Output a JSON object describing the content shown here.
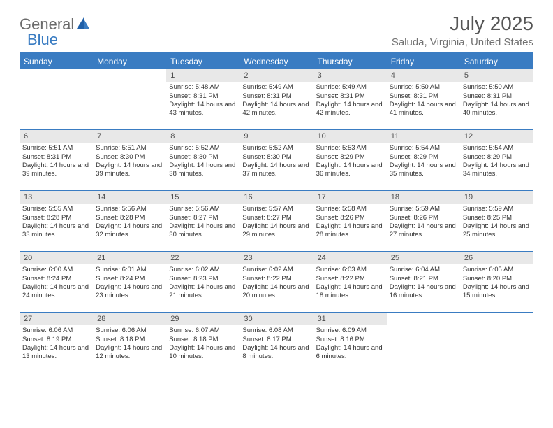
{
  "logo": {
    "text1": "General",
    "text2": "Blue"
  },
  "title": "July 2025",
  "location": "Saluda, Virginia, United States",
  "colors": {
    "accent": "#3a7cc2",
    "logo_gray": "#6b6b6b",
    "title_gray": "#555555",
    "subtitle_gray": "#717171",
    "daynum_bg": "#e8e8e8",
    "text": "#333333"
  },
  "day_headers": [
    "Sunday",
    "Monday",
    "Tuesday",
    "Wednesday",
    "Thursday",
    "Friday",
    "Saturday"
  ],
  "weeks": [
    [
      {
        "num": "",
        "lines": []
      },
      {
        "num": "",
        "lines": []
      },
      {
        "num": "1",
        "lines": [
          "Sunrise: 5:48 AM",
          "Sunset: 8:31 PM",
          "Daylight: 14 hours and 43 minutes."
        ]
      },
      {
        "num": "2",
        "lines": [
          "Sunrise: 5:49 AM",
          "Sunset: 8:31 PM",
          "Daylight: 14 hours and 42 minutes."
        ]
      },
      {
        "num": "3",
        "lines": [
          "Sunrise: 5:49 AM",
          "Sunset: 8:31 PM",
          "Daylight: 14 hours and 42 minutes."
        ]
      },
      {
        "num": "4",
        "lines": [
          "Sunrise: 5:50 AM",
          "Sunset: 8:31 PM",
          "Daylight: 14 hours and 41 minutes."
        ]
      },
      {
        "num": "5",
        "lines": [
          "Sunrise: 5:50 AM",
          "Sunset: 8:31 PM",
          "Daylight: 14 hours and 40 minutes."
        ]
      }
    ],
    [
      {
        "num": "6",
        "lines": [
          "Sunrise: 5:51 AM",
          "Sunset: 8:31 PM",
          "Daylight: 14 hours and 39 minutes."
        ]
      },
      {
        "num": "7",
        "lines": [
          "Sunrise: 5:51 AM",
          "Sunset: 8:30 PM",
          "Daylight: 14 hours and 39 minutes."
        ]
      },
      {
        "num": "8",
        "lines": [
          "Sunrise: 5:52 AM",
          "Sunset: 8:30 PM",
          "Daylight: 14 hours and 38 minutes."
        ]
      },
      {
        "num": "9",
        "lines": [
          "Sunrise: 5:52 AM",
          "Sunset: 8:30 PM",
          "Daylight: 14 hours and 37 minutes."
        ]
      },
      {
        "num": "10",
        "lines": [
          "Sunrise: 5:53 AM",
          "Sunset: 8:29 PM",
          "Daylight: 14 hours and 36 minutes."
        ]
      },
      {
        "num": "11",
        "lines": [
          "Sunrise: 5:54 AM",
          "Sunset: 8:29 PM",
          "Daylight: 14 hours and 35 minutes."
        ]
      },
      {
        "num": "12",
        "lines": [
          "Sunrise: 5:54 AM",
          "Sunset: 8:29 PM",
          "Daylight: 14 hours and 34 minutes."
        ]
      }
    ],
    [
      {
        "num": "13",
        "lines": [
          "Sunrise: 5:55 AM",
          "Sunset: 8:28 PM",
          "Daylight: 14 hours and 33 minutes."
        ]
      },
      {
        "num": "14",
        "lines": [
          "Sunrise: 5:56 AM",
          "Sunset: 8:28 PM",
          "Daylight: 14 hours and 32 minutes."
        ]
      },
      {
        "num": "15",
        "lines": [
          "Sunrise: 5:56 AM",
          "Sunset: 8:27 PM",
          "Daylight: 14 hours and 30 minutes."
        ]
      },
      {
        "num": "16",
        "lines": [
          "Sunrise: 5:57 AM",
          "Sunset: 8:27 PM",
          "Daylight: 14 hours and 29 minutes."
        ]
      },
      {
        "num": "17",
        "lines": [
          "Sunrise: 5:58 AM",
          "Sunset: 8:26 PM",
          "Daylight: 14 hours and 28 minutes."
        ]
      },
      {
        "num": "18",
        "lines": [
          "Sunrise: 5:59 AM",
          "Sunset: 8:26 PM",
          "Daylight: 14 hours and 27 minutes."
        ]
      },
      {
        "num": "19",
        "lines": [
          "Sunrise: 5:59 AM",
          "Sunset: 8:25 PM",
          "Daylight: 14 hours and 25 minutes."
        ]
      }
    ],
    [
      {
        "num": "20",
        "lines": [
          "Sunrise: 6:00 AM",
          "Sunset: 8:24 PM",
          "Daylight: 14 hours and 24 minutes."
        ]
      },
      {
        "num": "21",
        "lines": [
          "Sunrise: 6:01 AM",
          "Sunset: 8:24 PM",
          "Daylight: 14 hours and 23 minutes."
        ]
      },
      {
        "num": "22",
        "lines": [
          "Sunrise: 6:02 AM",
          "Sunset: 8:23 PM",
          "Daylight: 14 hours and 21 minutes."
        ]
      },
      {
        "num": "23",
        "lines": [
          "Sunrise: 6:02 AM",
          "Sunset: 8:22 PM",
          "Daylight: 14 hours and 20 minutes."
        ]
      },
      {
        "num": "24",
        "lines": [
          "Sunrise: 6:03 AM",
          "Sunset: 8:22 PM",
          "Daylight: 14 hours and 18 minutes."
        ]
      },
      {
        "num": "25",
        "lines": [
          "Sunrise: 6:04 AM",
          "Sunset: 8:21 PM",
          "Daylight: 14 hours and 16 minutes."
        ]
      },
      {
        "num": "26",
        "lines": [
          "Sunrise: 6:05 AM",
          "Sunset: 8:20 PM",
          "Daylight: 14 hours and 15 minutes."
        ]
      }
    ],
    [
      {
        "num": "27",
        "lines": [
          "Sunrise: 6:06 AM",
          "Sunset: 8:19 PM",
          "Daylight: 14 hours and 13 minutes."
        ]
      },
      {
        "num": "28",
        "lines": [
          "Sunrise: 6:06 AM",
          "Sunset: 8:18 PM",
          "Daylight: 14 hours and 12 minutes."
        ]
      },
      {
        "num": "29",
        "lines": [
          "Sunrise: 6:07 AM",
          "Sunset: 8:18 PM",
          "Daylight: 14 hours and 10 minutes."
        ]
      },
      {
        "num": "30",
        "lines": [
          "Sunrise: 6:08 AM",
          "Sunset: 8:17 PM",
          "Daylight: 14 hours and 8 minutes."
        ]
      },
      {
        "num": "31",
        "lines": [
          "Sunrise: 6:09 AM",
          "Sunset: 8:16 PM",
          "Daylight: 14 hours and 6 minutes."
        ]
      },
      {
        "num": "",
        "lines": []
      },
      {
        "num": "",
        "lines": []
      }
    ]
  ]
}
